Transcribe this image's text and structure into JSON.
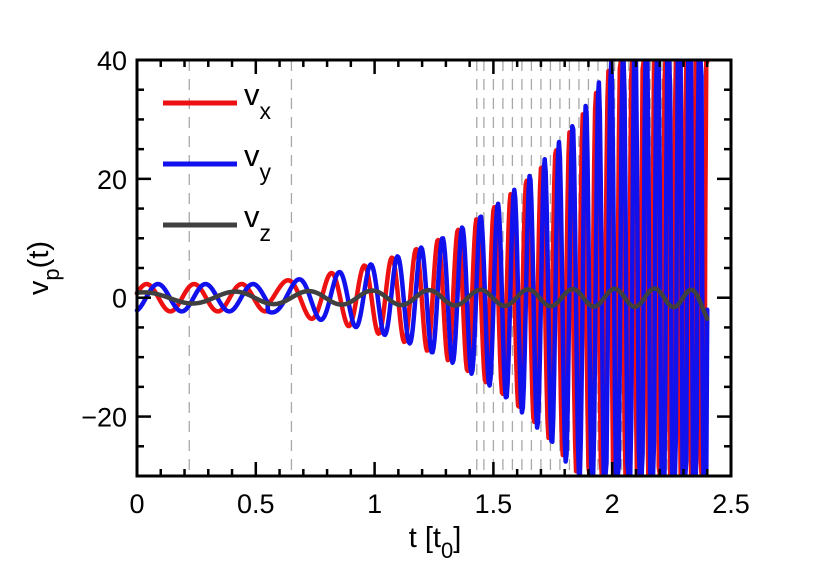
{
  "chart_data": {
    "type": "line",
    "xlabel": {
      "base": "t [t",
      "sub": "0",
      "end": "]"
    },
    "ylabel": {
      "base": "v",
      "sub": "p",
      "end": "(t)"
    },
    "xlim": [
      0,
      2.5
    ],
    "ylim": [
      -30,
      40
    ],
    "xticks": [
      {
        "value": 0,
        "label": "0"
      },
      {
        "value": 0.5,
        "label": "0.5"
      },
      {
        "value": 1,
        "label": "1"
      },
      {
        "value": 1.5,
        "label": "1.5"
      },
      {
        "value": 2,
        "label": "2"
      },
      {
        "value": 2.5,
        "label": "2.5"
      }
    ],
    "yticks": [
      {
        "value": -20,
        "label": "−20"
      },
      {
        "value": 0,
        "label": "0"
      },
      {
        "value": 20,
        "label": "20"
      },
      {
        "value": 40,
        "label": "40"
      }
    ],
    "x_minor_step": 0.1,
    "y_minor_step": 5,
    "vlines": [
      0.22,
      0.65,
      1.43,
      1.46,
      1.5,
      1.54,
      1.58,
      1.62,
      1.66,
      1.7,
      1.74,
      1.78,
      1.82,
      1.86,
      1.9,
      1.94,
      1.98,
      2.01,
      2.04,
      2.07,
      2.1,
      2.13,
      2.16,
      2.19,
      2.21,
      2.23,
      2.25,
      2.27,
      2.29,
      2.31,
      2.33,
      2.35
    ],
    "legend": {
      "placement": "top-left"
    },
    "series": [
      {
        "name": "v",
        "name_sub": "x",
        "color": "#ee1111"
      },
      {
        "name": "v",
        "name_sub": "y",
        "color": "#1111ee"
      },
      {
        "name": "v",
        "name_sub": "z",
        "color": "#404040"
      }
    ]
  }
}
